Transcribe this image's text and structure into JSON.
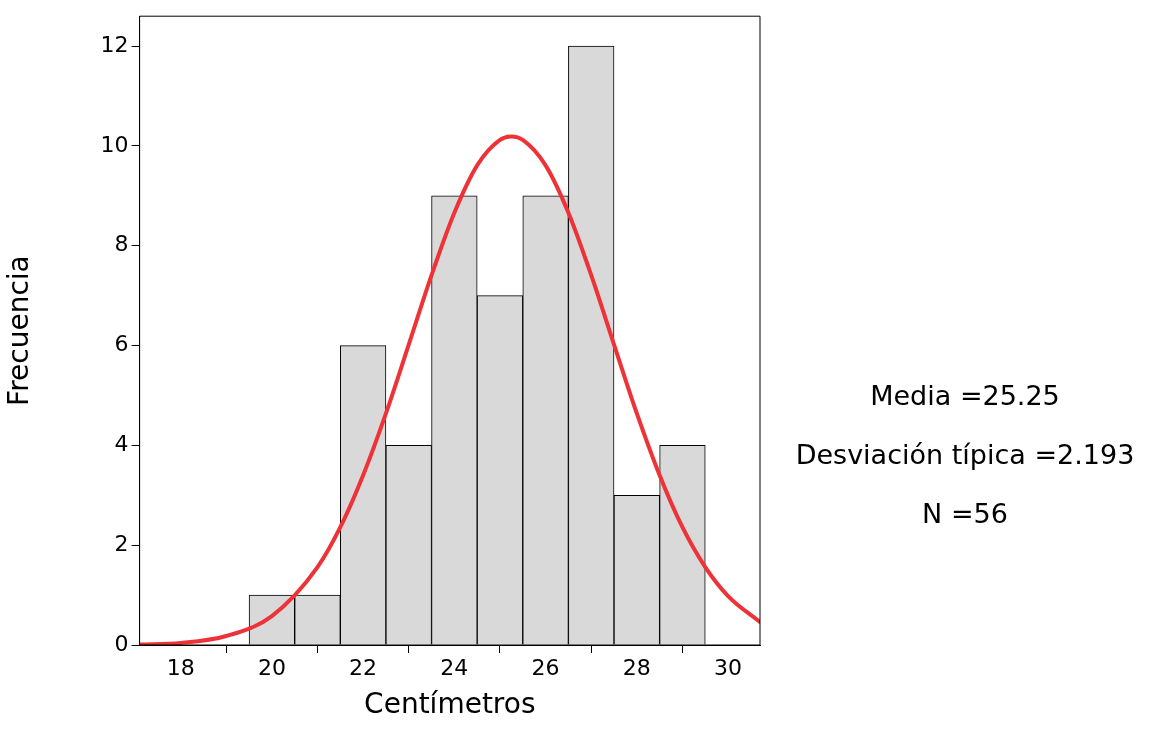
{
  "chart_data": {
    "type": "histogram",
    "xlabel": "Centímetros",
    "ylabel": "Frecuencia",
    "bins": [
      19.5,
      20.5,
      21.5,
      22.5,
      23.5,
      24.5,
      25.5,
      26.5,
      27.5,
      28.5,
      29.5
    ],
    "values": [
      1,
      1,
      6,
      4,
      9,
      7,
      9,
      12,
      3,
      4
    ],
    "color": "#d9d9d9",
    "series": [
      {
        "type": "line",
        "color": "#ee3338",
        "x": [
          17.1,
          18,
          19,
          20,
          21,
          21.5,
          22,
          22.5,
          23,
          23.5,
          24,
          24.5,
          25,
          25.25,
          25.5,
          26,
          26.5,
          27,
          27.5,
          28,
          28.5,
          29,
          29.5,
          30,
          30.7
        ],
        "values": [
          0.01,
          0.04,
          0.18,
          0.58,
          1.56,
          2.36,
          3.4,
          4.64,
          6.02,
          7.41,
          8.66,
          9.61,
          10.12,
          10.19,
          10.12,
          9.61,
          8.66,
          7.41,
          6.02,
          4.64,
          3.4,
          2.36,
          1.56,
          0.98,
          0.46
        ]
      }
    ],
    "xlim": [
      17.1,
      30.7
    ],
    "xticks": [
      18,
      20,
      22,
      24,
      26,
      28,
      30
    ],
    "ylim": [
      0,
      12.6
    ],
    "yticks": [
      0,
      2,
      4,
      6,
      8,
      10,
      12
    ],
    "grid": false,
    "legend": false,
    "marker": "none",
    "annotations": [
      "Media =25.25",
      "Desviación típica =2.193",
      "N =56"
    ]
  }
}
